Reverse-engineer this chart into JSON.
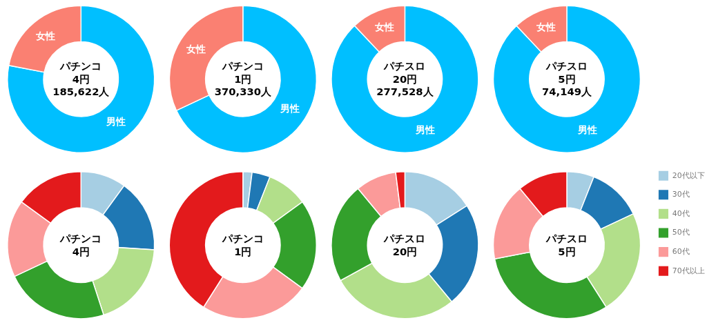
{
  "chart_data": [
    {
      "type": "donut",
      "title": "パチンコ\n4円\n185,622人",
      "categories": [
        "男性",
        "女性"
      ],
      "values": [
        78,
        22
      ],
      "colors": [
        "#00bfff",
        "#fa8072"
      ]
    },
    {
      "type": "donut",
      "title": "パチンコ\n1円\n370,330人",
      "categories": [
        "男性",
        "女性"
      ],
      "values": [
        68,
        32
      ],
      "colors": [
        "#00bfff",
        "#fa8072"
      ]
    },
    {
      "type": "donut",
      "title": "パチスロ\n20円\n277,528人",
      "categories": [
        "男性",
        "女性"
      ],
      "values": [
        88,
        12
      ],
      "colors": [
        "#00bfff",
        "#fa8072"
      ]
    },
    {
      "type": "donut",
      "title": "パチスロ\n5円\n74,149人",
      "categories": [
        "男性",
        "女性"
      ],
      "values": [
        88,
        12
      ],
      "colors": [
        "#00bfff",
        "#fa8072"
      ]
    },
    {
      "type": "donut",
      "title": "パチンコ\n4円",
      "categories": [
        null,
        null,
        null,
        null,
        null,
        null
      ],
      "values": [
        10,
        16,
        19,
        23,
        17,
        15
      ],
      "colors": [
        "#a6cee3",
        "#1f78b4",
        "#b2df8a",
        "#33a02c",
        "#fb9a99",
        "#e31a1c"
      ]
    },
    {
      "type": "donut",
      "title": "パチンコ\n1円",
      "categories": [
        null,
        null,
        null,
        null,
        null,
        null
      ],
      "values": [
        2,
        4,
        9,
        20,
        24,
        41
      ],
      "colors": [
        "#a6cee3",
        "#1f78b4",
        "#b2df8a",
        "#33a02c",
        "#fb9a99",
        "#e31a1c"
      ]
    },
    {
      "type": "donut",
      "title": "パチスロ\n20円",
      "categories": [
        null,
        null,
        null,
        null,
        null,
        null
      ],
      "values": [
        16,
        23,
        28,
        22,
        9,
        2
      ],
      "colors": [
        "#a6cee3",
        "#1f78b4",
        "#b2df8a",
        "#33a02c",
        "#fb9a99",
        "#e31a1c"
      ]
    },
    {
      "type": "donut",
      "title": "パチスロ\n5円",
      "categories": [
        "20代以下",
        "30代",
        "40代",
        "50代",
        "60代",
        "70代以上"
      ],
      "values": [
        6,
        12,
        23,
        31,
        17,
        11
      ],
      "colors": [
        "#a6cee3",
        "#1f78b4",
        "#b2df8a",
        "#33a02c",
        "#fb9a99",
        "#e31a1c"
      ],
      "legend": "right"
    }
  ]
}
